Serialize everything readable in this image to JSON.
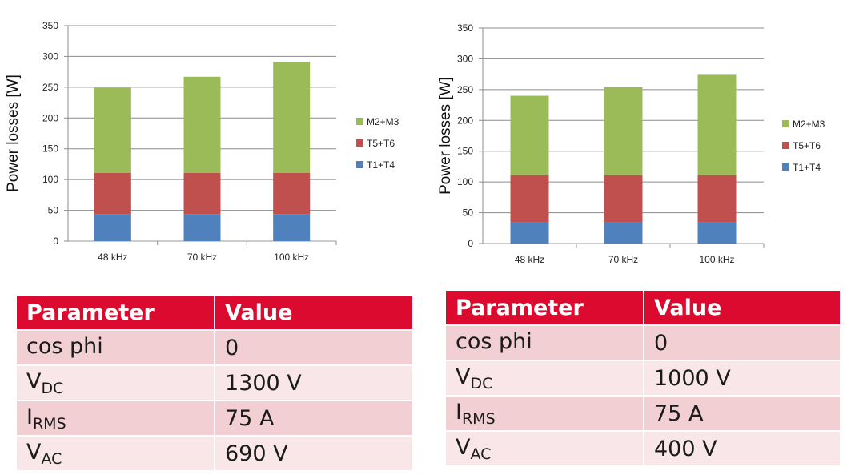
{
  "chart_data": [
    {
      "type": "bar",
      "stacked": true,
      "categories": [
        "48 kHz",
        "70 kHz",
        "100 kHz"
      ],
      "series": [
        {
          "name": "T1+T4",
          "color": "#4f81bd",
          "values": [
            44,
            44,
            44
          ]
        },
        {
          "name": "T5+T6",
          "color": "#c0504d",
          "values": [
            67,
            67,
            67
          ]
        },
        {
          "name": "M2+M3",
          "color": "#9bbb59",
          "values": [
            138,
            156,
            180
          ]
        }
      ],
      "ylabel": "Power losses [W]",
      "yticks": [
        "0",
        "50",
        "100",
        "150",
        "200",
        "250",
        "300",
        "350"
      ],
      "ylim": [
        0,
        350
      ],
      "grid": true,
      "legend": "right"
    },
    {
      "type": "bar",
      "stacked": true,
      "categories": [
        "48 kHz",
        "70 kHz",
        "100 kHz"
      ],
      "series": [
        {
          "name": "T1+T4",
          "color": "#4f81bd",
          "values": [
            34,
            34,
            34
          ]
        },
        {
          "name": "T5+T6",
          "color": "#c0504d",
          "values": [
            77,
            77,
            77
          ]
        },
        {
          "name": "M2+M3",
          "color": "#9bbb59",
          "values": [
            129,
            143,
            163
          ]
        }
      ],
      "ylabel": "Power losses [W]",
      "yticks": [
        "0",
        "50",
        "100",
        "150",
        "200",
        "250",
        "300",
        "350"
      ],
      "ylim": [
        0,
        350
      ],
      "grid": true,
      "legend": "right"
    }
  ],
  "tables": [
    {
      "headers": [
        "Parameter",
        "Value"
      ],
      "rows": [
        {
          "param": "cos phi",
          "sub": "",
          "value": "0"
        },
        {
          "param": "V",
          "sub": "DC",
          "value": "1300 V"
        },
        {
          "param": "I",
          "sub": "RMS",
          "value": "75 A"
        },
        {
          "param": "V",
          "sub": "AC",
          "value": "690 V"
        }
      ]
    },
    {
      "headers": [
        "Parameter",
        "Value"
      ],
      "rows": [
        {
          "param": "cos phi",
          "sub": "",
          "value": "0"
        },
        {
          "param": "V",
          "sub": "DC",
          "value": "1000 V"
        },
        {
          "param": "I",
          "sub": "RMS",
          "value": "75 A"
        },
        {
          "param": "V",
          "sub": "AC",
          "value": "400 V"
        }
      ]
    }
  ]
}
